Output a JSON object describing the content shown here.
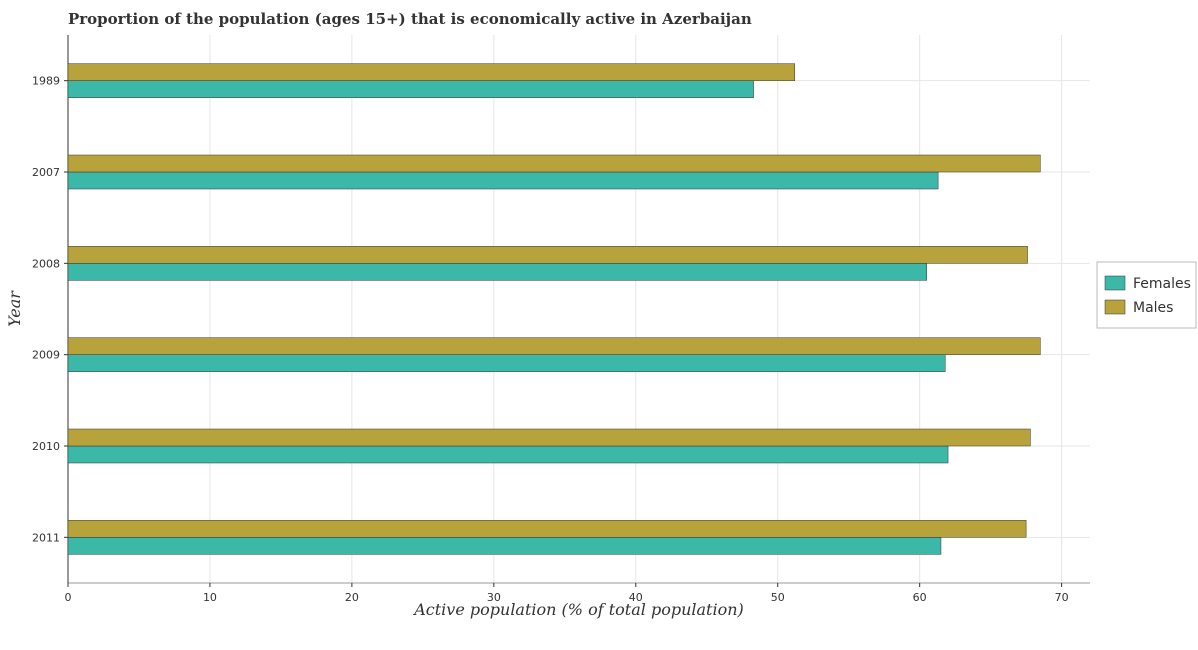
{
  "chart_data": {
    "type": "bar",
    "orientation": "horizontal",
    "title": "Proportion of the population (ages 15+) that is economically active in Azerbaijan",
    "xlabel": "Active population (% of total population)",
    "ylabel": "Year",
    "categories": [
      "1989",
      "2007",
      "2008",
      "2009",
      "2010",
      "2011"
    ],
    "series": [
      {
        "name": "Females",
        "color": "#3cb8a8",
        "values": [
          48.3,
          61.3,
          60.5,
          61.8,
          62.0,
          61.5
        ]
      },
      {
        "name": "Males",
        "color": "#b8a23c",
        "values": [
          51.2,
          68.5,
          67.6,
          68.5,
          67.8,
          67.5
        ]
      }
    ],
    "xlim": [
      0,
      72
    ],
    "xticks": [
      "0",
      "10",
      "20",
      "30",
      "40",
      "50",
      "60",
      "70"
    ],
    "grid": true,
    "legend_position": "right"
  }
}
